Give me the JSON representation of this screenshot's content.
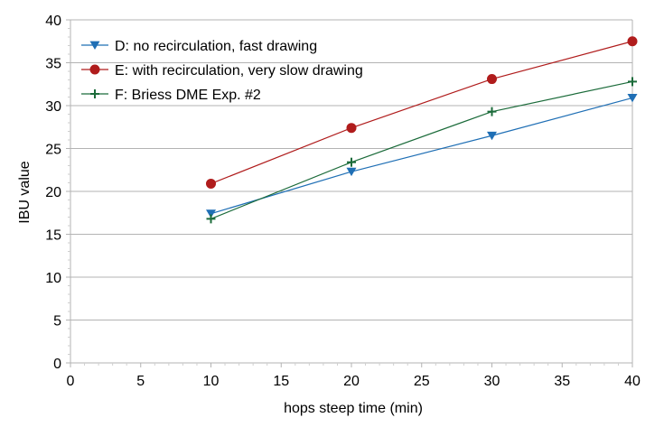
{
  "chart_data": {
    "type": "line",
    "title": "",
    "xlabel": "hops steep time (min)",
    "ylabel": "IBU value",
    "xlim": [
      0,
      40
    ],
    "ylim": [
      0,
      40
    ],
    "x_ticks": [
      0,
      5,
      10,
      15,
      20,
      25,
      30,
      35,
      40
    ],
    "y_ticks": [
      0,
      5,
      10,
      15,
      20,
      25,
      30,
      35,
      40
    ],
    "grid": "horizontal major",
    "legend_position": "top-left",
    "series": [
      {
        "name": "D: no recirculation, fast drawing",
        "color": "#1f6fb5",
        "marker": "triangle-down",
        "x": [
          10,
          20,
          30,
          40
        ],
        "y": [
          17.4,
          22.3,
          26.5,
          30.9
        ]
      },
      {
        "name": "E: with recirculation, very slow drawing",
        "color": "#b01c1c",
        "marker": "circle",
        "x": [
          10,
          20,
          30,
          40
        ],
        "y": [
          20.9,
          27.4,
          33.1,
          37.5
        ]
      },
      {
        "name": "F: Briess DME Exp. #2",
        "color": "#1b6b3a",
        "marker": "plus",
        "x": [
          10,
          20,
          30,
          40
        ],
        "y": [
          16.8,
          23.4,
          29.3,
          32.8
        ]
      }
    ]
  }
}
